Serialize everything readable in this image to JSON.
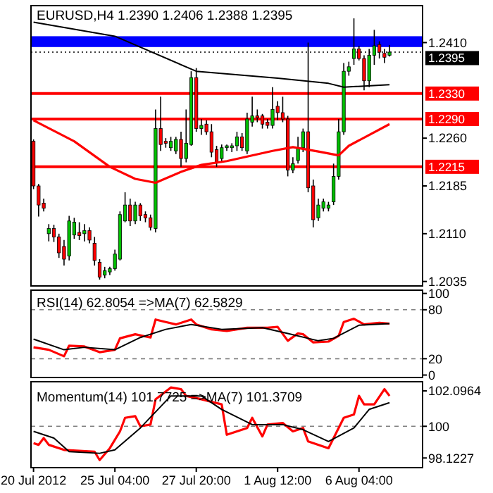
{
  "chart_data": [
    {
      "type": "candlestick",
      "title": "EURUSD,H4  1.2390 1.2406 1.2388 1.2395",
      "tick_labels": "y",
      "ylim": [
        1.2028,
        1.2468
      ],
      "yticks": [
        {
          "value": 1.241,
          "label": "1.2410"
        },
        {
          "value": 1.226,
          "label": "1.2260"
        },
        {
          "value": 1.2185,
          "label": "1.2185"
        },
        {
          "value": 1.211,
          "label": "1.2110"
        },
        {
          "value": 1.2035,
          "label": "1.2035"
        }
      ],
      "ohlc": [
        [
          1.2255,
          1.2258,
          1.218,
          1.2185
        ],
        [
          1.2185,
          1.2188,
          1.2137,
          1.2155
        ],
        [
          1.2158,
          1.2165,
          1.2145,
          1.215
        ],
        [
          1.211,
          1.2125,
          1.2098,
          1.2118
        ],
        [
          1.2118,
          1.2124,
          1.2097,
          1.2105
        ],
        [
          1.2105,
          1.211,
          1.2072,
          1.208
        ],
        [
          1.209,
          1.21,
          1.206,
          1.207
        ],
        [
          1.2075,
          1.2138,
          1.2068,
          1.213
        ],
        [
          1.2108,
          1.2135,
          1.2102,
          1.2128
        ],
        [
          1.2112,
          1.2128,
          1.21,
          1.2107
        ],
        [
          1.211,
          1.2125,
          1.2098,
          1.2115
        ],
        [
          1.2115,
          1.212,
          1.2095,
          1.21
        ],
        [
          1.2095,
          1.2105,
          1.206,
          1.2068
        ],
        [
          1.2065,
          1.207,
          1.2038,
          1.2042
        ],
        [
          1.2045,
          1.2058,
          1.204,
          1.2052
        ],
        [
          1.205,
          1.2058,
          1.2045,
          1.2055
        ],
        [
          1.2055,
          1.2085,
          1.2052,
          1.2078
        ],
        [
          1.207,
          1.2145,
          1.2068,
          1.214
        ],
        [
          1.213,
          1.2175,
          1.2128,
          1.2155
        ],
        [
          1.2155,
          1.2165,
          1.2122,
          1.213
        ],
        [
          1.213,
          1.216,
          1.2125,
          1.2155
        ],
        [
          1.2155,
          1.2158,
          1.213,
          1.2138
        ],
        [
          1.214,
          1.2145,
          1.2128,
          1.2135
        ],
        [
          1.2135,
          1.214,
          1.2115,
          1.212
        ],
        [
          1.2118,
          1.2305,
          1.2112,
          1.2275
        ],
        [
          1.2275,
          1.2325,
          1.224,
          1.225
        ],
        [
          1.2255,
          1.226,
          1.2245,
          1.2252
        ],
        [
          1.2245,
          1.2262,
          1.224,
          1.2255
        ],
        [
          1.224,
          1.2262,
          1.2235,
          1.2258
        ],
        [
          1.2258,
          1.227,
          1.2215,
          1.2228
        ],
        [
          1.2228,
          1.2305,
          1.2222,
          1.2252
        ],
        [
          1.225,
          1.2365,
          1.2248,
          1.2355
        ],
        [
          1.2355,
          1.237,
          1.227,
          1.2275
        ],
        [
          1.2275,
          1.229,
          1.2265,
          1.228
        ],
        [
          1.2282,
          1.2288,
          1.2265,
          1.227
        ],
        [
          1.227,
          1.2282,
          1.223,
          1.2238
        ],
        [
          1.2242,
          1.2248,
          1.2215,
          1.2222
        ],
        [
          1.2228,
          1.225,
          1.2222,
          1.2245
        ],
        [
          1.2245,
          1.225,
          1.224,
          1.2248
        ],
        [
          1.2245,
          1.2252,
          1.2238,
          1.2248
        ],
        [
          1.2248,
          1.227,
          1.224,
          1.2262
        ],
        [
          1.2262,
          1.2268,
          1.224,
          1.2245
        ],
        [
          1.224,
          1.23,
          1.2235,
          1.229
        ],
        [
          1.2285,
          1.2325,
          1.2278,
          1.2295
        ],
        [
          1.2295,
          1.2305,
          1.2285,
          1.2292
        ],
        [
          1.2295,
          1.2298,
          1.2275,
          1.2282
        ],
        [
          1.2285,
          1.229,
          1.2275,
          1.228
        ],
        [
          1.228,
          1.234,
          1.2275,
          1.2305
        ],
        [
          1.231,
          1.2318,
          1.2288,
          1.23
        ],
        [
          1.23,
          1.2325,
          1.2285,
          1.229
        ],
        [
          1.229,
          1.2295,
          1.22,
          1.221
        ],
        [
          1.221,
          1.223,
          1.2205,
          1.222
        ],
        [
          1.2225,
          1.2262,
          1.222,
          1.2245
        ],
        [
          1.2245,
          1.2275,
          1.2238,
          1.227
        ],
        [
          1.227,
          1.241,
          1.2175,
          1.2182
        ],
        [
          1.2185,
          1.2195,
          1.212,
          1.2132
        ],
        [
          1.2135,
          1.2165,
          1.213,
          1.2155
        ],
        [
          1.215,
          1.2165,
          1.2145,
          1.216
        ],
        [
          1.215,
          1.216,
          1.2145,
          1.2155
        ],
        [
          1.216,
          1.222,
          1.2155,
          1.22
        ],
        [
          1.22,
          1.229,
          1.2195,
          1.227
        ],
        [
          1.227,
          1.2378,
          1.2265,
          1.2365
        ],
        [
          1.2365,
          1.238,
          1.2358,
          1.2372
        ],
        [
          1.2385,
          1.2448,
          1.2375,
          1.24
        ],
        [
          1.24,
          1.2405,
          1.2382,
          1.2385
        ],
        [
          1.2385,
          1.239,
          1.2335,
          1.235
        ],
        [
          1.235,
          1.24,
          1.234,
          1.239
        ],
        [
          1.239,
          1.243,
          1.2375,
          1.2405
        ],
        [
          1.2407,
          1.2412,
          1.2385,
          1.2395
        ],
        [
          1.2393,
          1.24,
          1.2378,
          1.2387
        ],
        [
          1.239,
          1.2406,
          1.2388,
          1.2395
        ]
      ],
      "colors": [
        "#ff0000",
        "#ff0000",
        "#ff0000",
        "#00c000",
        "#ff0000",
        "#ff0000",
        "#ff0000",
        "#00c000",
        "#00c000",
        "#ff0000",
        "#00c000",
        "#ff0000",
        "#ff0000",
        "#ff0000",
        "#00c000",
        "#00c000",
        "#00c000",
        "#00c000",
        "#00c000",
        "#ff0000",
        "#00c000",
        "#ff0000",
        "#ff0000",
        "#ff0000",
        "#00c000",
        "#ff0000",
        "#ff0000",
        "#00c000",
        "#00c000",
        "#ff0000",
        "#00c000",
        "#00c000",
        "#ff0000",
        "#00c000",
        "#ff0000",
        "#ff0000",
        "#ff0000",
        "#00c000",
        "#00c000",
        "#00c000",
        "#00c000",
        "#ff0000",
        "#00c000",
        "#00c000",
        "#ff0000",
        "#ff0000",
        "#ff0000",
        "#00c000",
        "#ff0000",
        "#ff0000",
        "#ff0000",
        "#00c000",
        "#00c000",
        "#00c000",
        "#ff0000",
        "#ff0000",
        "#00c000",
        "#00c000",
        "#00c000",
        "#00c000",
        "#00c000",
        "#00c000",
        "#00c000",
        "#00c000",
        "#ff0000",
        "#ff0000",
        "#00c000",
        "#00c000",
        "#ff0000",
        "#ff0000",
        "#00c000"
      ],
      "series": [
        {
          "type": "line",
          "color": "#000000",
          "values": [
            1.2442,
            null,
            null,
            null,
            null,
            null,
            null,
            null,
            null,
            null,
            null,
            null,
            null,
            null,
            null,
            null,
            1.242,
            null,
            null,
            null,
            null,
            null,
            null,
            null,
            null,
            null,
            null,
            null,
            null,
            null,
            null,
            null,
            1.2365,
            null,
            null,
            null,
            null,
            null,
            null,
            null,
            null,
            null,
            null,
            null,
            null,
            null,
            null,
            null,
            1.2354,
            null,
            null,
            null,
            null,
            null,
            null,
            null,
            null,
            null,
            1.2346,
            null,
            null,
            1.234,
            null,
            null,
            null,
            null,
            null,
            null,
            null,
            null,
            1.2344
          ]
        },
        {
          "type": "line",
          "color": "#ff0000",
          "values": [
            1.2288,
            null,
            null,
            null,
            null,
            null,
            null,
            null,
            1.2255,
            null,
            null,
            null,
            null,
            null,
            null,
            1.2215,
            null,
            null,
            null,
            null,
            1.2196,
            null,
            null,
            null,
            1.219,
            null,
            null,
            null,
            null,
            1.2207,
            null,
            null,
            null,
            1.2218,
            null,
            null,
            null,
            null,
            1.2224,
            null,
            null,
            null,
            null,
            null,
            null,
            null,
            null,
            1.224,
            null,
            null,
            null,
            1.2246,
            null,
            null,
            null,
            null,
            1.2239,
            null,
            null,
            null,
            1.2233,
            null,
            1.2248,
            null,
            null,
            null,
            null,
            null,
            null,
            null,
            1.2282
          ]
        }
      ],
      "bands": [
        {
          "axis": "y",
          "from": 1.2403,
          "to": 1.242,
          "color": "#0000ff"
        }
      ],
      "ref_lines": [
        {
          "axis": "y",
          "value": 1.233,
          "label": "1.2330",
          "color": "#ff0000"
        },
        {
          "axis": "y",
          "value": 1.229,
          "label": "1.2290",
          "color": "#ff0000"
        },
        {
          "axis": "y",
          "value": 1.2215,
          "label": "1.2215",
          "color": "#ff0000"
        },
        {
          "axis": "y",
          "value": 1.2395,
          "label": "1.2395",
          "color": "#000000",
          "line_style": "dotted"
        }
      ]
    },
    {
      "type": "line",
      "title": "RSI(14) 62.8054 =>MA(7) 62.5829",
      "tick_labels": "y",
      "ylim": [
        -3,
        104
      ],
      "yticks": [
        100,
        80,
        20,
        0
      ],
      "series": [
        {
          "color": "#ff0000",
          "values": [
            34,
            null,
            null,
            31,
            null,
            null,
            23,
            36,
            null,
            null,
            35,
            null,
            null,
            28,
            null,
            null,
            31,
            45,
            null,
            null,
            50,
            null,
            null,
            46,
            68,
            null,
            65,
            null,
            62,
            null,
            null,
            68,
            62,
            null,
            null,
            56,
            null,
            null,
            54,
            null,
            null,
            null,
            58,
            null,
            null,
            null,
            58,
            null,
            59,
            null,
            42,
            null,
            51,
            50,
            null,
            40,
            null,
            null,
            41,
            null,
            48,
            65,
            null,
            69,
            null,
            62,
            null,
            null,
            64,
            null,
            63
          ]
        },
        {
          "color": "#000000",
          "values": [
            44,
            null,
            null,
            null,
            null,
            null,
            31,
            null,
            null,
            null,
            34,
            null,
            null,
            null,
            null,
            null,
            31,
            null,
            null,
            null,
            null,
            46,
            null,
            null,
            null,
            null,
            56,
            null,
            null,
            null,
            null,
            62,
            null,
            null,
            null,
            null,
            null,
            56,
            null,
            null,
            null,
            null,
            null,
            null,
            null,
            58,
            null,
            null,
            null,
            null,
            51,
            null,
            null,
            null,
            null,
            null,
            42,
            null,
            null,
            45,
            null,
            null,
            null,
            null,
            61,
            null,
            null,
            null,
            null,
            null,
            63
          ]
        }
      ],
      "ref_lines": [
        {
          "axis": "y",
          "value": 80,
          "color": "#808080",
          "line_style": "dashed"
        },
        {
          "axis": "y",
          "value": 20,
          "color": "#808080",
          "line_style": "dashed"
        }
      ]
    },
    {
      "type": "line",
      "title": "Momentum(14) 101.7725 =>MA(7) 101.3709",
      "ylim": [
        97.55,
        102.64
      ],
      "yticks": [
        102.0964,
        100,
        98.1227
      ],
      "categories": [
        "20 Jul 2012",
        null,
        null,
        null,
        null,
        null,
        null,
        null,
        null,
        null,
        null,
        null,
        null,
        null,
        null,
        null,
        "25 Jul 04:00",
        null,
        null,
        null,
        null,
        null,
        null,
        null,
        null,
        null,
        null,
        null,
        null,
        null,
        null,
        null,
        "27 Jul 20:00",
        null,
        null,
        null,
        null,
        null,
        null,
        null,
        null,
        null,
        null,
        null,
        null,
        null,
        null,
        null,
        "1 Aug 12:00",
        null,
        null,
        null,
        null,
        null,
        null,
        null,
        null,
        null,
        null,
        null,
        null,
        null,
        null,
        null,
        "6 Aug 04:00",
        null,
        null,
        null,
        null,
        null,
        null
      ],
      "series": [
        {
          "color": "#ff0000",
          "values": [
            99.0,
            98.9,
            99.3,
            98.9,
            null,
            null,
            98.6,
            null,
            null,
            null,
            null,
            null,
            98.5,
            98.0,
            null,
            98.7,
            null,
            99.7,
            100.5,
            null,
            100.6,
            100.0,
            null,
            100.1,
            101.6,
            null,
            null,
            102.3,
            null,
            102.2,
            101.8,
            null,
            null,
            101.6,
            null,
            null,
            null,
            101.3,
            99.5,
            null,
            null,
            null,
            99.9,
            100.5,
            null,
            99.4,
            100.1,
            null,
            null,
            100.2,
            null,
            99.7,
            null,
            99.9,
            99.1,
            null,
            null,
            null,
            98.7,
            null,
            null,
            100.5,
            null,
            100.7,
            101.8,
            101.3,
            null,
            101.3,
            null,
            102.2,
            101.8
          ]
        },
        {
          "color": "#000000",
          "values": [
            99.7,
            null,
            null,
            null,
            99.3,
            null,
            null,
            98.5,
            null,
            null,
            null,
            null,
            null,
            98.4,
            null,
            null,
            98.6,
            null,
            null,
            null,
            null,
            99.9,
            null,
            null,
            null,
            null,
            null,
            101.8,
            null,
            null,
            null,
            null,
            null,
            101.8,
            null,
            null,
            null,
            101.0,
            null,
            null,
            null,
            null,
            null,
            100.1,
            null,
            null,
            null,
            null,
            null,
            100.1,
            null,
            null,
            null,
            99.8,
            null,
            null,
            null,
            null,
            99.1,
            null,
            null,
            null,
            null,
            99.9,
            null,
            null,
            101.0,
            null,
            null,
            null,
            101.4
          ]
        }
      ],
      "ref_lines": [
        {
          "axis": "y",
          "value": 100,
          "color": "#808080",
          "line_style": "dashed"
        }
      ]
    }
  ]
}
